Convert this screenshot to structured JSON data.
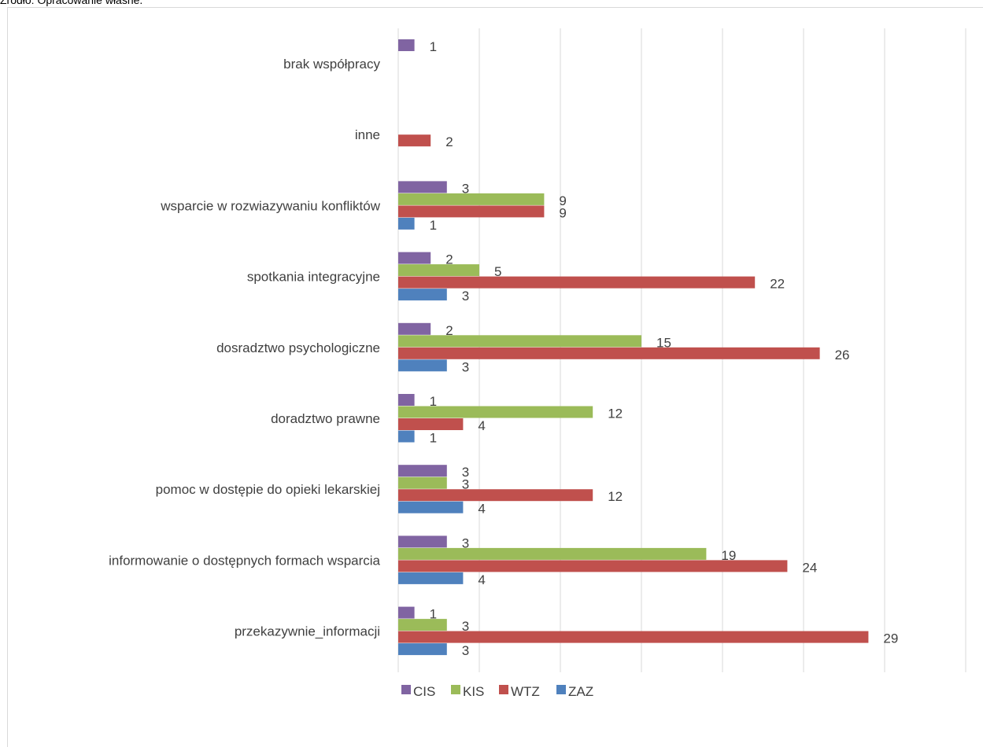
{
  "source_note": "Źródło: Opracowanie własne.",
  "chart_data": {
    "type": "bar",
    "orientation": "horizontal",
    "title": "",
    "xlabel": "",
    "ylabel": "",
    "xlim": [
      0,
      35
    ],
    "grid": true,
    "legend_position": "bottom",
    "categories": [
      "brak współpracy",
      "inne",
      "wsparcie w rozwiazywaniu konfliktów",
      "spotkania integracyjne",
      "dosradztwo psychologiczne",
      "doradztwo prawne ",
      "pomoc w dostępie do opieki lekarskiej",
      "informowanie o dostępnych formach wsparcia",
      "przekazywnie_informacji"
    ],
    "series": [
      {
        "name": "CIS",
        "color": "#8064a2",
        "values": [
          1,
          null,
          3,
          2,
          2,
          1,
          3,
          3,
          1
        ]
      },
      {
        "name": "KIS",
        "color": "#9bbb59",
        "values": [
          null,
          null,
          9,
          5,
          15,
          12,
          3,
          19,
          3
        ]
      },
      {
        "name": "WTZ",
        "color": "#c0504d",
        "values": [
          null,
          2,
          9,
          22,
          26,
          4,
          12,
          24,
          29
        ]
      },
      {
        "name": "ZAZ",
        "color": "#4f81bd",
        "values": [
          null,
          null,
          1,
          3,
          3,
          1,
          4,
          4,
          3
        ]
      }
    ]
  }
}
